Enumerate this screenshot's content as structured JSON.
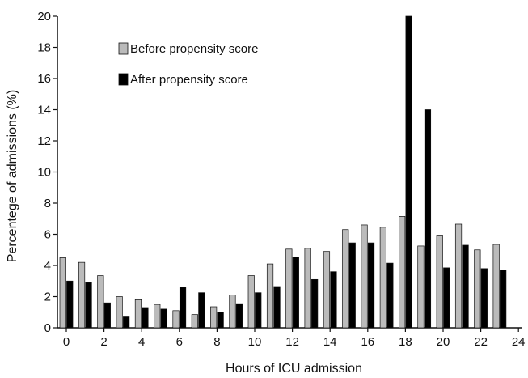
{
  "chart_data": {
    "type": "bar",
    "xlabel": "Hours of ICU admission",
    "ylabel": "Percentege of admissions (%)",
    "ylim": [
      0,
      20
    ],
    "xlim": [
      -0.5,
      24
    ],
    "y_ticks": [
      "0",
      "2",
      "4",
      "6",
      "8",
      "10",
      "12",
      "14",
      "16",
      "18",
      "20"
    ],
    "x_ticks": [
      "0",
      "2",
      "4",
      "6",
      "8",
      "10",
      "12",
      "14",
      "16",
      "18",
      "20",
      "22",
      "24"
    ],
    "categories": [
      0,
      1,
      2,
      3,
      4,
      5,
      6,
      7,
      8,
      9,
      10,
      11,
      12,
      13,
      14,
      15,
      16,
      17,
      18,
      19,
      20,
      21,
      22,
      23
    ],
    "legend_position": "top-left",
    "grid": false,
    "series": [
      {
        "name": "Before propensity score",
        "color": "#bbbbbb",
        "values": [
          4.5,
          4.2,
          3.35,
          2.0,
          1.8,
          1.5,
          1.1,
          0.85,
          1.35,
          2.1,
          3.35,
          4.1,
          5.05,
          5.1,
          4.9,
          6.3,
          6.6,
          6.45,
          7.15,
          5.25,
          5.95,
          6.65,
          5.0,
          5.35
        ]
      },
      {
        "name": "After propensity score",
        "color": "#000000",
        "values": [
          3.0,
          2.9,
          1.6,
          0.7,
          1.3,
          1.2,
          2.6,
          2.25,
          1.0,
          1.55,
          2.25,
          2.65,
          4.55,
          3.1,
          3.6,
          5.45,
          5.45,
          4.15,
          20.0,
          14.0,
          3.85,
          5.3,
          3.8,
          3.7
        ]
      }
    ]
  }
}
